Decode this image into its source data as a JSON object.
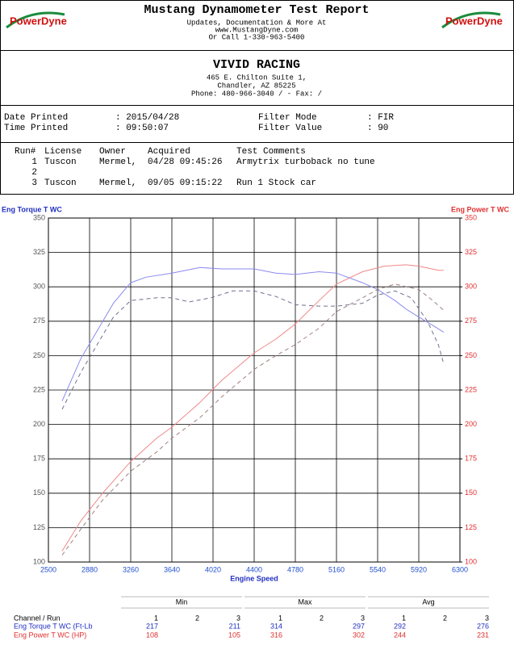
{
  "header": {
    "logo_text": "PowerDyne",
    "title": "Mustang Dynamometer Test Report",
    "lines": [
      "Updates, Documentation & More At",
      "www.MustangDyne.com",
      "Or Call 1-330-963-5400"
    ]
  },
  "shop": {
    "name": "VIVID RACING",
    "lines": [
      "465 E. Chilton Suite 1,",
      "Chandler, AZ  85225",
      "Phone: 480-966-3040 /  - Fax:  /"
    ]
  },
  "info": [
    {
      "label": "Date Printed",
      "value": ": 2015/04/28",
      "label2": "Filter Mode",
      "value2": ": FIR"
    },
    {
      "label": "Time Printed",
      "value": ": 09:50:07",
      "label2": "Filter Value",
      "value2": ": 90"
    }
  ],
  "runs": {
    "headers": [
      "Run#",
      "License",
      "Owner",
      "Acquired",
      "Test Comments"
    ],
    "rows": [
      [
        "1",
        "Tuscon",
        "Mermel,",
        "04/28 09:45:26",
        "Armytrix turboback no tune"
      ],
      [
        "2"
      ],
      [
        "3",
        "Tuscon",
        "Mermel,",
        "09/05 09:15:22",
        "Run 1 Stock car"
      ]
    ]
  },
  "chart_data": {
    "type": "line",
    "y_label": "Eng Torque T WC",
    "y2_label": "Eng Power T WC",
    "x_label": "Engine Speed",
    "xlim": [
      2500,
      6300
    ],
    "xticks": [
      2500,
      2880,
      3260,
      3640,
      4020,
      4400,
      4780,
      5160,
      5540,
      5920,
      6300
    ],
    "ylim": [
      100,
      350
    ],
    "yticks": [
      100,
      125,
      150,
      175,
      200,
      225,
      250,
      275,
      300,
      325,
      350
    ],
    "y2lim": [
      100,
      350
    ],
    "y2ticks": [
      100,
      125,
      150,
      175,
      200,
      225,
      250,
      275,
      300,
      325,
      350
    ],
    "grid": true,
    "series": [
      {
        "color": "#8a8af0",
        "dash": false,
        "x": [
          2627,
          2800,
          2950,
          3100,
          3260,
          3400,
          3640,
          3900,
          4100,
          4400,
          4600,
          4780,
          5000,
          5160,
          5400,
          5540,
          5700,
          5800,
          5920,
          6050,
          6150
        ],
        "values": [
          217,
          248,
          268,
          288,
          303,
          307,
          310,
          314,
          313,
          313,
          310,
          309,
          311,
          310,
          303,
          298,
          290,
          284,
          278,
          272,
          267
        ]
      },
      {
        "color": "#707090",
        "dash": true,
        "x": [
          2627,
          2800,
          2950,
          3100,
          3260,
          3500,
          3640,
          3800,
          4000,
          4200,
          4400,
          4600,
          4780,
          5000,
          5160,
          5400,
          5540,
          5700,
          5850,
          6000,
          6100,
          6150
        ],
        "values": [
          211,
          238,
          258,
          278,
          290,
          292,
          292,
          289,
          292,
          297,
          297,
          293,
          287,
          286,
          286,
          288,
          294,
          297,
          292,
          275,
          258,
          244
        ]
      },
      {
        "color": "#f08888",
        "dash": false,
        "axis": "y2",
        "x": [
          2627,
          2800,
          3000,
          3260,
          3500,
          3640,
          3900,
          4100,
          4400,
          4600,
          4780,
          5000,
          5160,
          5400,
          5600,
          5800,
          5920,
          6100,
          6150
        ],
        "values": [
          108,
          130,
          150,
          173,
          190,
          198,
          216,
          232,
          252,
          262,
          273,
          290,
          302,
          311,
          315,
          316,
          315,
          312,
          312
        ]
      },
      {
        "color": "#a08080",
        "dash": true,
        "axis": "y2",
        "x": [
          2627,
          2800,
          3000,
          3260,
          3500,
          3640,
          3900,
          4100,
          4400,
          4600,
          4780,
          5000,
          5160,
          5400,
          5540,
          5700,
          5920,
          6050,
          6150
        ],
        "values": [
          105,
          124,
          145,
          166,
          180,
          190,
          205,
          220,
          240,
          250,
          258,
          270,
          282,
          292,
          298,
          302,
          298,
          290,
          283
        ]
      }
    ]
  },
  "summary": {
    "groups": [
      "Min",
      "Max",
      "Avg"
    ],
    "runs": [
      "1",
      "2",
      "3",
      "1",
      "2",
      "3",
      "1",
      "2",
      "3"
    ],
    "row_header": "Channel / Run",
    "rows": [
      {
        "label": "Eng Torque T WC (Ft-Lb",
        "values": [
          217,
          null,
          211,
          314,
          null,
          297,
          292,
          null,
          276
        ]
      },
      {
        "label": "Eng Power T WC (HP)",
        "values": [
          108,
          null,
          105,
          316,
          null,
          302,
          244,
          null,
          231
        ]
      }
    ]
  }
}
